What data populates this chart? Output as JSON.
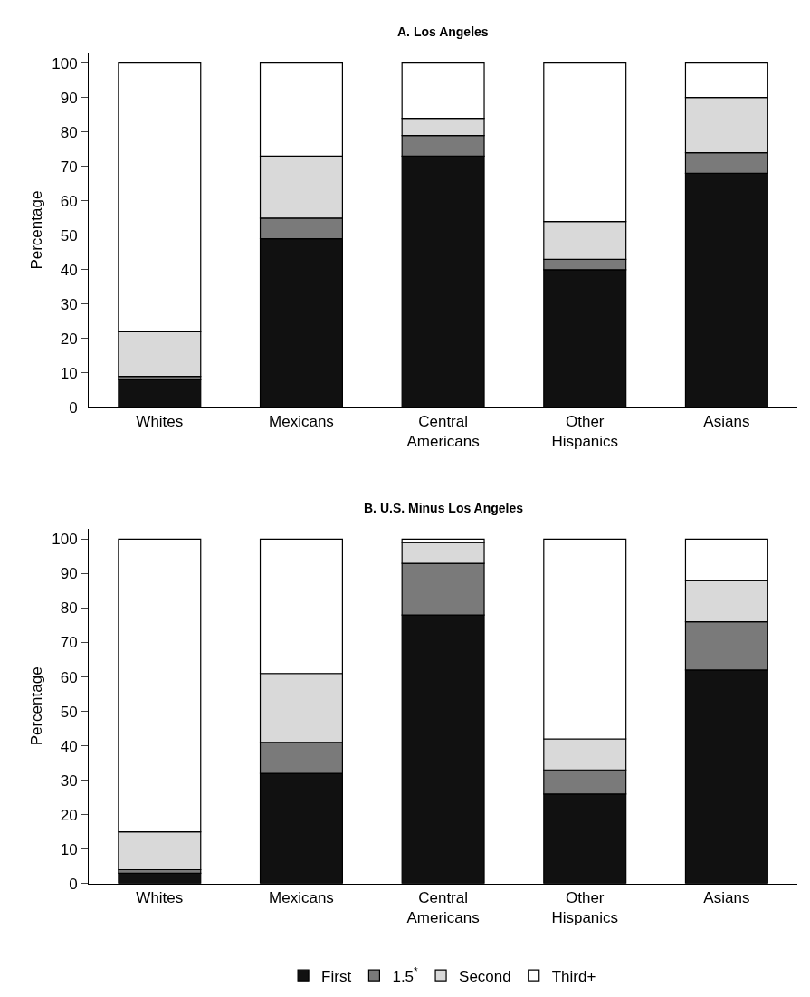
{
  "chart_data": [
    {
      "type": "bar",
      "title": "A. Los Angeles",
      "ylabel": "Percentage",
      "stacked": true,
      "categories": [
        "Whites",
        "Mexicans",
        "Central Americans",
        "Other Hispanics",
        "Asians"
      ],
      "series": [
        {
          "name": "First",
          "color": "#111111",
          "values": [
            8,
            49,
            73,
            40,
            68
          ]
        },
        {
          "name": "1.5$^{*}$",
          "color": "#7a7a7a",
          "values": [
            1,
            6,
            6,
            3,
            6
          ]
        },
        {
          "name": "Second",
          "color": "#d9d9d9",
          "values": [
            13,
            18,
            5,
            11,
            16
          ]
        },
        {
          "name": "Third+",
          "color": "#ffffff",
          "values": [
            78,
            27,
            16,
            46,
            10
          ]
        }
      ],
      "ylim": [
        0,
        103
      ],
      "yticks": [
        0,
        10,
        20,
        30,
        40,
        50,
        60,
        70,
        80,
        90,
        100
      ],
      "legend": "bottom"
    },
    {
      "type": "bar",
      "title": "B. U.S. Minus Los Angeles",
      "ylabel": "Percentage",
      "stacked": true,
      "categories": [
        "Whites",
        "Mexicans",
        "Central Americans",
        "Other Hispanics",
        "Asians"
      ],
      "series": [
        {
          "name": "First",
          "color": "#111111",
          "values": [
            3,
            32,
            78,
            26,
            62
          ]
        },
        {
          "name": "1.5$^{*}$",
          "color": "#7a7a7a",
          "values": [
            1,
            9,
            15,
            7,
            14
          ]
        },
        {
          "name": "Second",
          "color": "#d9d9d9",
          "values": [
            11,
            20,
            6,
            9,
            12
          ]
        },
        {
          "name": "Third+",
          "color": "#ffffff",
          "values": [
            85,
            39,
            1,
            58,
            12
          ]
        }
      ],
      "ylim": [
        0,
        103
      ],
      "yticks": [
        0,
        10,
        20,
        30,
        40,
        50,
        60,
        70,
        80,
        90,
        100
      ],
      "legend": "bottom"
    }
  ]
}
